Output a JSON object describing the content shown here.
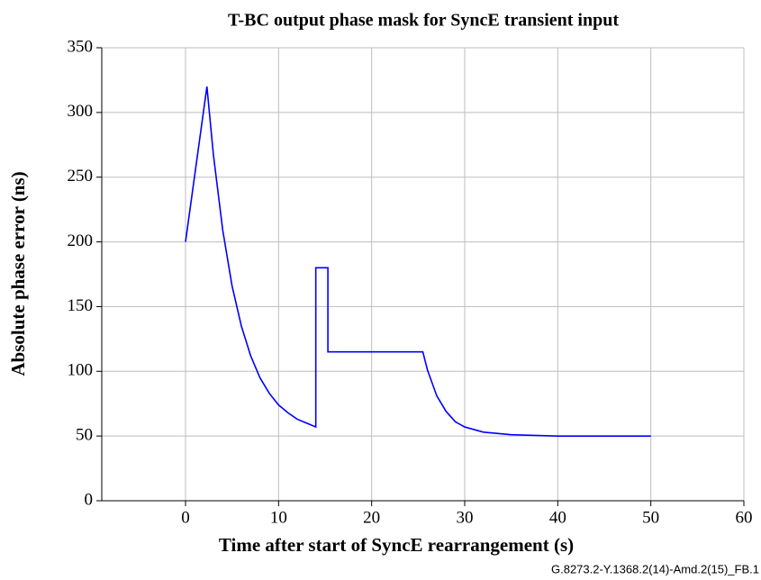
{
  "chart_data": {
    "type": "line",
    "title": "T-BC output phase mask for SyncE transient input",
    "x_label": "Time after start of SyncE rearrangement (s)",
    "y_label": "Absolute phase error (ns)",
    "footnote": "G.8273.2-Y.1368.2(14)-Amd.2(15)_FB.1",
    "x": [
      0,
      2.3,
      3,
      4,
      5,
      6,
      7,
      8,
      9,
      10,
      11,
      12,
      13,
      14,
      14,
      15.3,
      15.3,
      25.5,
      26,
      27,
      28,
      29,
      30,
      32,
      35,
      40,
      50
    ],
    "series": [
      {
        "name": "mask",
        "color": "#0000ff",
        "values": [
          200,
          320,
          267,
          209,
          166,
          135,
          112,
          95,
          83,
          74,
          68,
          63,
          60,
          57,
          180,
          180,
          115,
          115,
          101,
          81,
          69,
          61,
          57,
          53,
          51,
          50,
          50
        ]
      }
    ],
    "xlim": [
      -9,
      60
    ],
    "xticks": [
      0,
      10,
      20,
      30,
      40,
      50,
      60
    ],
    "ylim": [
      0,
      350
    ],
    "yticks": [
      0,
      50,
      100,
      150,
      200,
      250,
      300,
      350
    ],
    "grid": true
  }
}
